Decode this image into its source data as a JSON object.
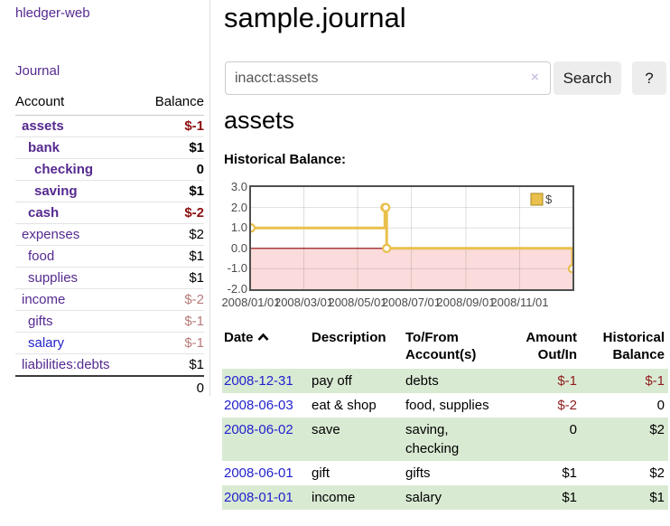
{
  "app": {
    "title": "hledger-web"
  },
  "sidebar": {
    "journal_link": "Journal",
    "accounts_table": {
      "account_header": "Account",
      "balance_header": "Balance",
      "rows": [
        {
          "name": "assets",
          "depth": 1,
          "bold": true,
          "balance": "$-1",
          "balance_style": "neg"
        },
        {
          "name": "bank",
          "depth": 2,
          "bold": true,
          "balance": "$1",
          "balance_style": "pos"
        },
        {
          "name": "checking",
          "depth": 3,
          "bold": true,
          "balance": "0",
          "balance_style": "pos"
        },
        {
          "name": "saving",
          "depth": 3,
          "bold": true,
          "balance": "$1",
          "balance_style": "pos"
        },
        {
          "name": "cash",
          "depth": 2,
          "bold": true,
          "balance": "$-2",
          "balance_style": "neg"
        },
        {
          "name": "expenses",
          "depth": 1,
          "bold": false,
          "balance": "$2",
          "balance_style": "pos"
        },
        {
          "name": "food",
          "depth": 2,
          "bold": false,
          "balance": "$1",
          "balance_style": "pos"
        },
        {
          "name": "supplies",
          "depth": 2,
          "bold": false,
          "balance": "$1",
          "balance_style": "pos"
        },
        {
          "name": "income",
          "depth": 1,
          "bold": false,
          "balance": "$-2",
          "balance_style": "neg-muted"
        },
        {
          "name": "gifts",
          "depth": 2,
          "bold": false,
          "balance": "$-1",
          "balance_style": "neg-muted"
        },
        {
          "name": "salary",
          "depth": 2,
          "bold": false,
          "link_style": "blue",
          "balance": "$-1",
          "balance_style": "neg-muted"
        },
        {
          "name": "liabilities:debts",
          "depth": 1,
          "bold": false,
          "balance": "$1",
          "balance_style": "pos"
        }
      ],
      "total": "0"
    }
  },
  "main": {
    "title": "sample.journal",
    "search": {
      "value": "inacct:assets",
      "clear_icon": "×",
      "button": "Search",
      "help_button": "?"
    },
    "account_heading": "assets",
    "chart_label": "Historical Balance:"
  },
  "chart_data": {
    "type": "line",
    "title": "Historical Balance:",
    "series": [
      {
        "name": "$",
        "color": "#e9c04e",
        "step": true,
        "points": [
          [
            "2008-01-01",
            1
          ],
          [
            "2008-06-01",
            2
          ],
          [
            "2008-06-02",
            2
          ],
          [
            "2008-06-03",
            0
          ],
          [
            "2008-12-31",
            -1
          ]
        ]
      }
    ],
    "x_range": [
      "2008-01-01",
      "2008-12-31"
    ],
    "ylim": [
      -2,
      3
    ],
    "y_ticks": [
      "3.0",
      "2.0",
      "1.0",
      "0.0",
      "-1.0",
      "-2.0"
    ],
    "x_ticks": [
      "2008/01/01",
      "2008/03/01",
      "2008/05/01",
      "2008/07/01",
      "2008/09/01",
      "2008/11/01"
    ],
    "grid": true,
    "legend_position": "top-right",
    "legend_label": "$",
    "negative_fill": "#fbdbdb",
    "zero_line_color": "#8b0000"
  },
  "transactions": {
    "headers": {
      "date": "Date",
      "description": "Description",
      "tofrom": "To/From Account(s)",
      "amount": "Amount Out/In",
      "balance": "Historical Balance"
    },
    "rows": [
      {
        "date": "2008-12-31",
        "description": "pay off",
        "accounts": "debts",
        "amount": "$-1",
        "amount_neg": true,
        "balance": "$-1",
        "balance_neg": true
      },
      {
        "date": "2008-06-03",
        "description": "eat & shop",
        "accounts": "food, supplies",
        "amount": "$-2",
        "amount_neg": true,
        "balance": "0",
        "balance_neg": false
      },
      {
        "date": "2008-06-02",
        "description": "save",
        "accounts": "saving, checking",
        "amount": "0",
        "amount_neg": false,
        "balance": "$2",
        "balance_neg": false
      },
      {
        "date": "2008-06-01",
        "description": "gift",
        "accounts": "gifts",
        "amount": "$1",
        "amount_neg": false,
        "balance": "$2",
        "balance_neg": false
      },
      {
        "date": "2008-01-01",
        "description": "income",
        "accounts": "salary",
        "amount": "$1",
        "amount_neg": false,
        "balance": "$1",
        "balance_neg": false
      }
    ]
  }
}
